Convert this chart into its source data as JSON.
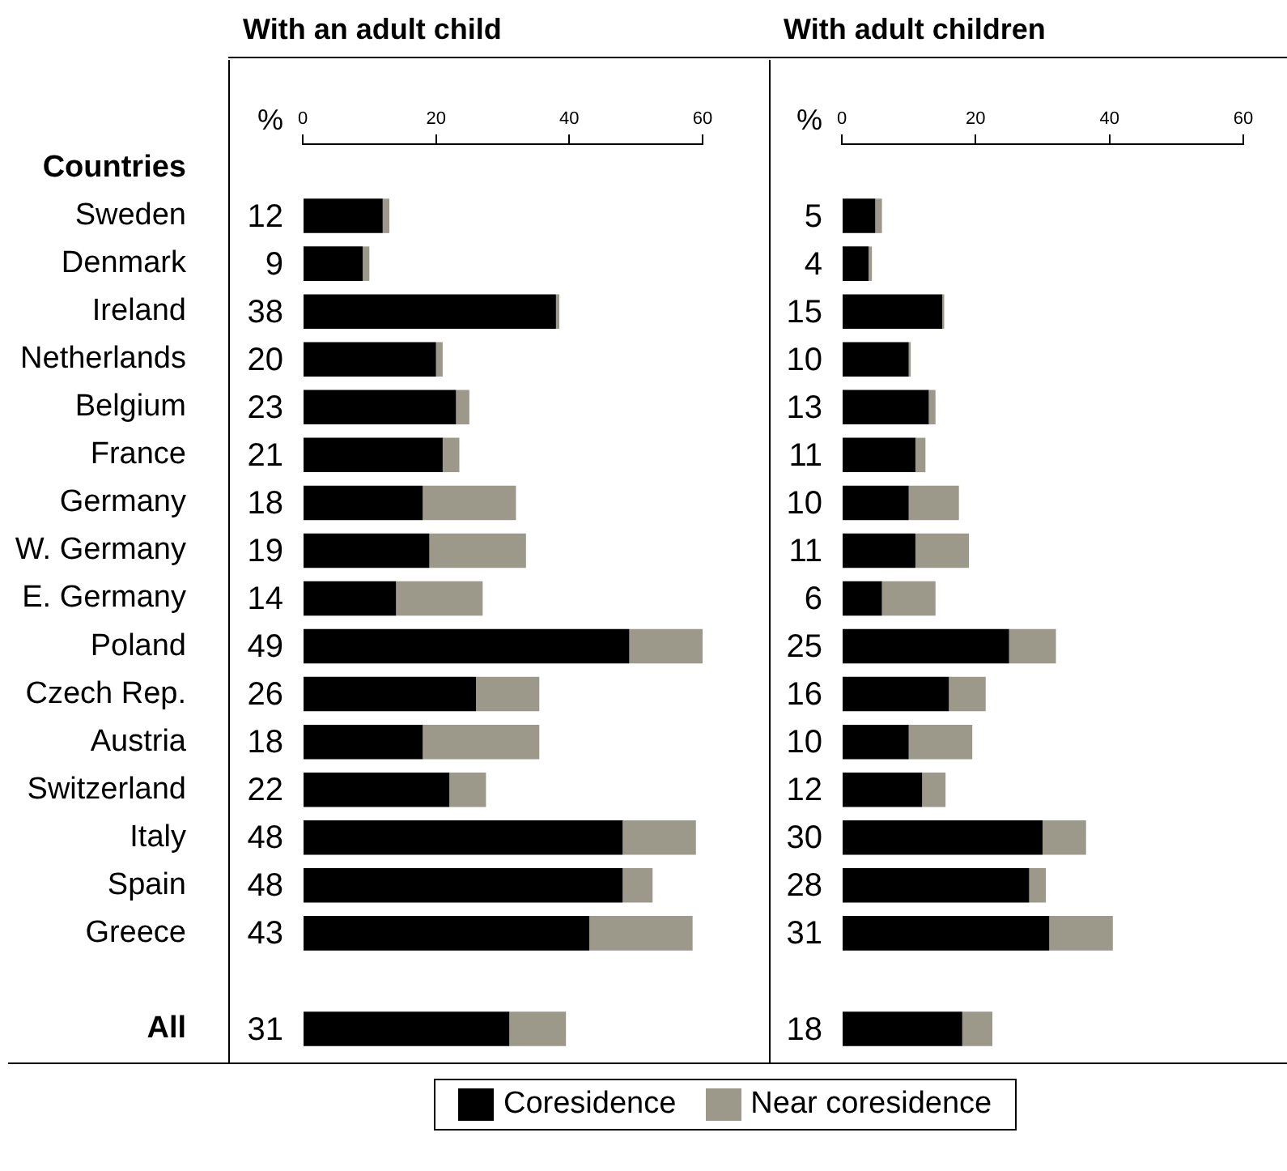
{
  "chart_data": [
    {
      "type": "bar",
      "orientation": "horizontal",
      "stacked": true,
      "title": "With an adult child",
      "xlabel": "%",
      "categories": [
        "Countries",
        "Sweden",
        "Denmark",
        "Ireland",
        "Netherlands",
        "Belgium",
        "France",
        "Germany",
        "W. Germany",
        "E. Germany",
        "Poland",
        "Czech Rep.",
        "Austria",
        "Switzerland",
        "Italy",
        "Spain",
        "Greece",
        null,
        "All"
      ],
      "series": [
        {
          "name": "Coresidence",
          "color": "#000000",
          "values": [
            null,
            12,
            9,
            38,
            20,
            23,
            21,
            18,
            19,
            14,
            49,
            26,
            18,
            22,
            48,
            48,
            43,
            null,
            31
          ],
          "value_labels": [
            null,
            "12",
            "9",
            "38",
            "20",
            "23",
            "21",
            "18",
            "19",
            "14",
            "49",
            "26",
            "18",
            "22",
            "48",
            "48",
            "43",
            null,
            "31"
          ]
        },
        {
          "name": "Near coresidence",
          "color": "#9c998a",
          "values": [
            null,
            1,
            1,
            0.5,
            1,
            2,
            2.5,
            14,
            14.5,
            13,
            11,
            9.5,
            17.5,
            5.5,
            11,
            4.5,
            15.5,
            null,
            8.5
          ]
        }
      ],
      "xlim": [
        0,
        60
      ],
      "xticks": [
        0,
        20,
        40,
        60
      ],
      "legend": "bottom"
    },
    {
      "type": "bar",
      "orientation": "horizontal",
      "stacked": true,
      "title": "With adult children",
      "xlabel": "%",
      "categories": [
        null,
        null,
        null,
        null,
        null,
        null,
        null,
        null,
        null,
        null,
        null,
        null,
        null,
        null,
        null,
        null,
        null,
        null,
        null
      ],
      "series": [
        {
          "color": "#000000",
          "values": [
            null,
            5,
            4,
            15,
            10,
            13,
            11,
            10,
            11,
            6,
            25,
            16,
            10,
            12,
            30,
            28,
            31,
            null,
            18
          ],
          "value_labels": [
            null,
            "5",
            "4",
            "15",
            "10",
            "13",
            "11",
            "10",
            "11",
            "6",
            "25",
            "16",
            "10",
            "12",
            "30",
            "28",
            "31",
            null,
            "18"
          ]
        },
        {
          "color": "#9c998a",
          "values": [
            null,
            1,
            0.5,
            0.3,
            0.3,
            1,
            1.5,
            7.5,
            8,
            8,
            7,
            5.5,
            9.5,
            3.5,
            6.5,
            2.5,
            9.5,
            null,
            4.5
          ]
        }
      ],
      "xlim": [
        0,
        60
      ],
      "xticks": [
        0,
        20,
        40,
        60
      ],
      "tick_labels": "x"
    }
  ]
}
